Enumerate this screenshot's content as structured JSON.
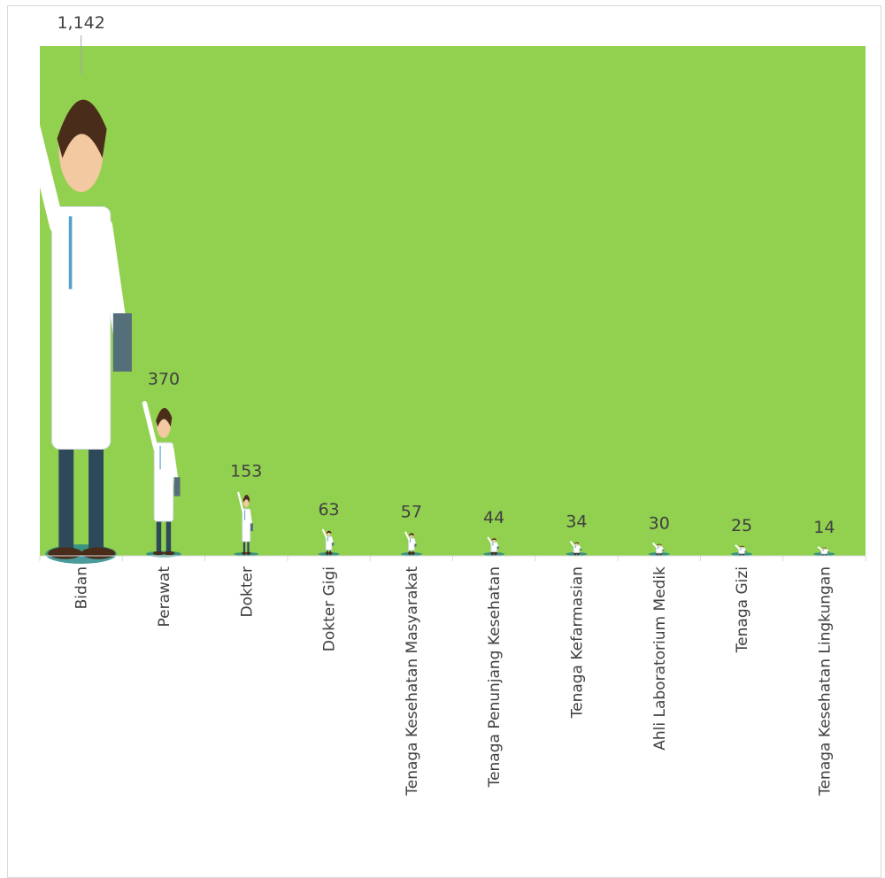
{
  "chart_data": {
    "type": "bar",
    "title": "",
    "xlabel": "",
    "ylabel": "",
    "ylim": [
      0,
      1142
    ],
    "categories": [
      "Bidan",
      "Perawat",
      "Dokter",
      "Dokter Gigi",
      "Tenaga Kesehatan Masyarakat",
      "Tenaga Penunjang Kesehatan",
      "Tenaga Kefarmasian",
      "Ahli Laboratorium Medik",
      "Tenaga Gizi",
      "Tenaga Kesehatan Lingkungan"
    ],
    "values": [
      1142,
      370,
      153,
      63,
      57,
      44,
      34,
      30,
      25,
      14
    ],
    "value_labels": [
      "1,142",
      "370",
      "153",
      "63",
      "57",
      "44",
      "34",
      "30",
      "25",
      "14"
    ],
    "grid": false,
    "legend": "none",
    "mark": "doctor-pictogram"
  },
  "colors": {
    "plot_background": "#92d050",
    "axis": "#d9d9d9",
    "text": "#404040",
    "coat": "#ffffff",
    "hair": "#4a2c1a",
    "skin": "#f2c9a0",
    "pants": "#2e4a5a",
    "shadow": "#2a8a8a"
  }
}
